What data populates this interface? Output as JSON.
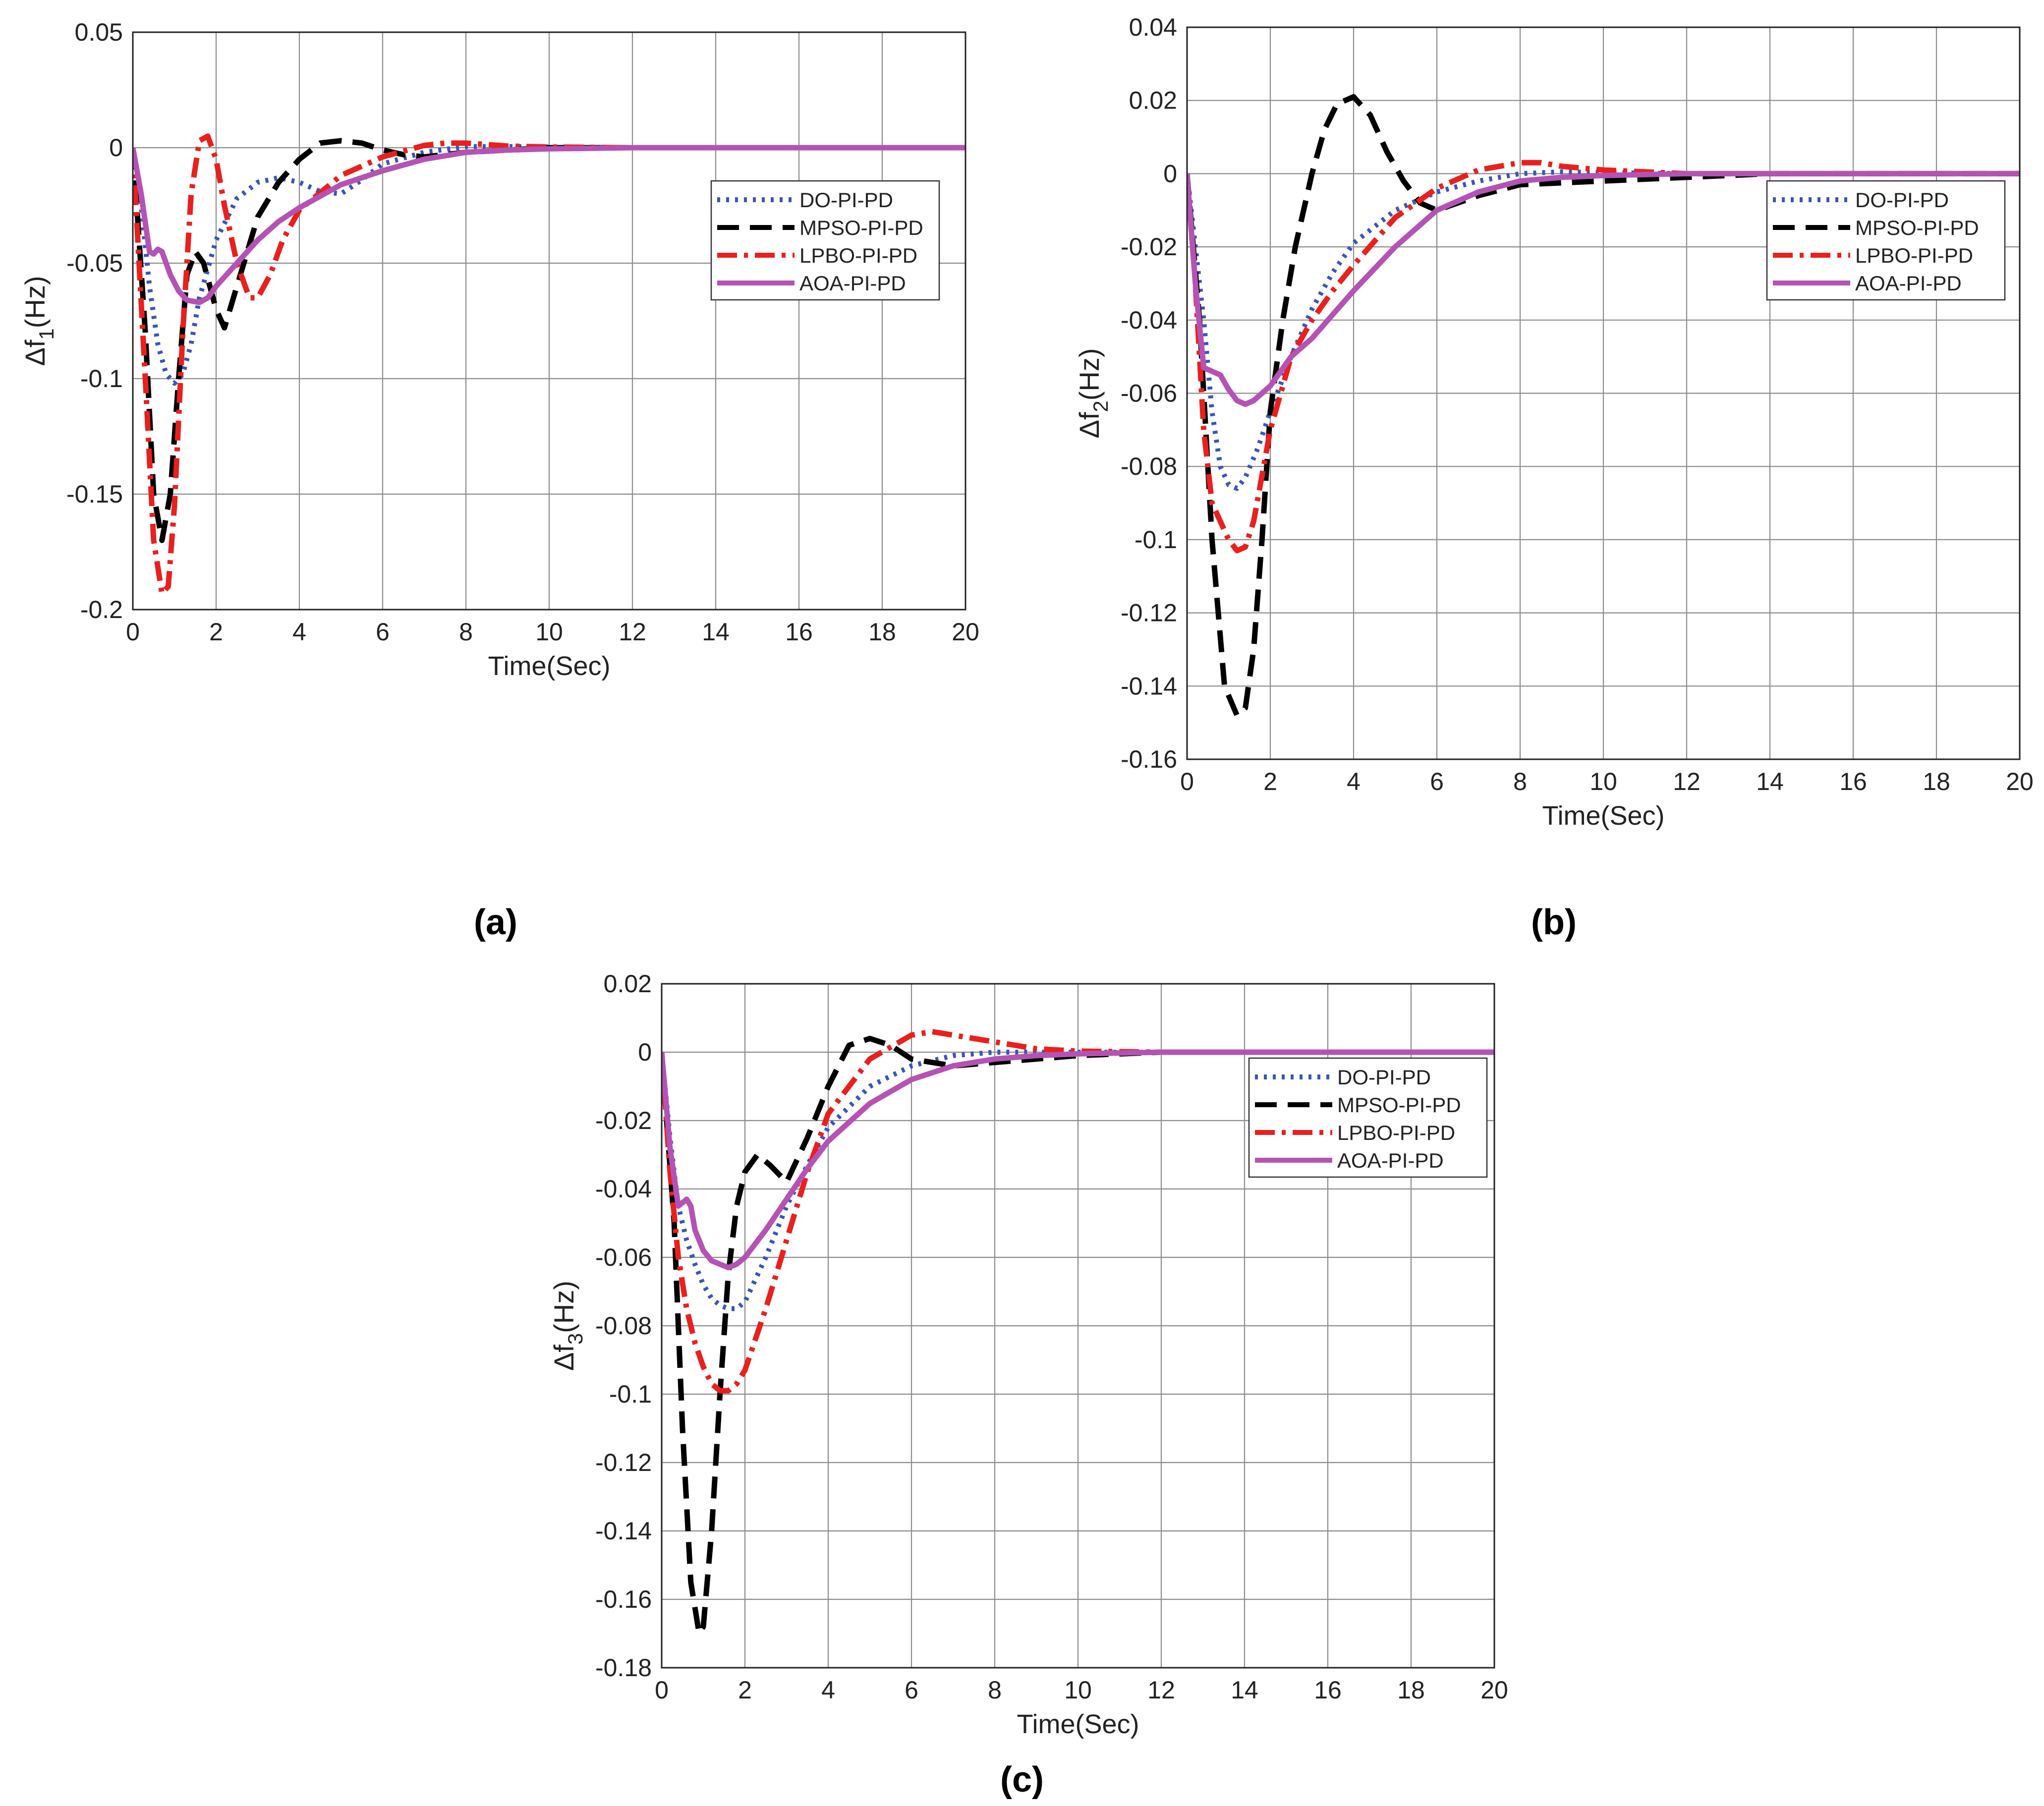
{
  "figure": {
    "captions": [
      "(a)",
      "(b)",
      "(c)"
    ]
  },
  "legend_styles": [
    {
      "name": "DO-PI-PD",
      "color": "#3a55b4",
      "dash": "dotted"
    },
    {
      "name": "MPSO-PI-PD",
      "color": "#000000",
      "dash": "dashed"
    },
    {
      "name": "LPBO-PI-PD",
      "color": "#e8201e",
      "dash": "dashdot"
    },
    {
      "name": "AOA-PI-PD",
      "color": "#b453b4",
      "dash": "solid"
    }
  ],
  "chart_data": [
    {
      "type": "line",
      "panel": "(a)",
      "xlabel": "Time(Sec)",
      "ylabel": "Δf1(Hz)",
      "ylabel_main": "Δf",
      "ylabel_sub": "1",
      "ylabel_unit": "(Hz)",
      "xlim": [
        0,
        20
      ],
      "ylim": [
        -0.2,
        0.05
      ],
      "xticks": [
        0,
        2,
        4,
        6,
        8,
        10,
        12,
        14,
        16,
        18,
        20
      ],
      "yticks": [
        -0.2,
        -0.15,
        -0.1,
        -0.05,
        0,
        0.05
      ],
      "ytick_labels": [
        "-0.2",
        "-0.15",
        "-0.1",
        "-0.05",
        "0",
        "0.05"
      ],
      "grid": true,
      "legend_position": "top-right",
      "series": [
        {
          "name": "DO-PI-PD",
          "x": [
            0,
            0.2,
            0.4,
            0.6,
            0.8,
            1.0,
            1.2,
            1.4,
            1.6,
            2.0,
            2.5,
            3.0,
            3.5,
            4.0,
            4.5,
            5.0,
            5.5,
            6.0,
            7.0,
            8.0,
            9.0,
            10,
            12,
            14,
            16,
            18,
            20
          ],
          "y": [
            0,
            -0.025,
            -0.06,
            -0.085,
            -0.098,
            -0.102,
            -0.098,
            -0.085,
            -0.065,
            -0.04,
            -0.022,
            -0.015,
            -0.013,
            -0.015,
            -0.019,
            -0.02,
            -0.014,
            -0.007,
            -0.002,
            0.0005,
            0.0005,
            0.0003,
            0,
            0,
            0,
            0,
            0
          ]
        },
        {
          "name": "MPSO-PI-PD",
          "x": [
            0,
            0.3,
            0.5,
            0.7,
            0.9,
            1.1,
            1.3,
            1.5,
            1.7,
            2.0,
            2.2,
            2.5,
            3.0,
            3.5,
            4.0,
            4.5,
            5.0,
            5.5,
            6.0,
            6.5,
            7.0,
            8.0,
            9.0,
            10,
            12,
            14,
            16,
            18,
            20
          ],
          "y": [
            0,
            -0.08,
            -0.15,
            -0.17,
            -0.15,
            -0.1,
            -0.055,
            -0.045,
            -0.05,
            -0.07,
            -0.078,
            -0.06,
            -0.03,
            -0.015,
            -0.005,
            0.002,
            0.003,
            0.002,
            -0.001,
            -0.003,
            -0.004,
            -0.002,
            -0.001,
            0,
            0,
            0,
            0,
            0,
            0
          ]
        },
        {
          "name": "LPBO-PI-PD",
          "x": [
            0,
            0.3,
            0.5,
            0.7,
            0.85,
            1.0,
            1.2,
            1.4,
            1.6,
            1.8,
            2.0,
            2.2,
            2.5,
            2.8,
            3.0,
            3.3,
            3.6,
            4.0,
            5.0,
            6.0,
            7.0,
            7.5,
            8.0,
            9.0,
            10,
            12,
            14,
            16,
            18,
            20
          ],
          "y": [
            0,
            -0.1,
            -0.17,
            -0.193,
            -0.19,
            -0.155,
            -0.08,
            -0.02,
            0.003,
            0.005,
            -0.005,
            -0.025,
            -0.05,
            -0.065,
            -0.065,
            -0.055,
            -0.04,
            -0.027,
            -0.012,
            -0.004,
            0.001,
            0.002,
            0.002,
            0.0007,
            0.0003,
            0,
            0,
            0,
            0,
            0
          ]
        },
        {
          "name": "AOA-PI-PD",
          "x": [
            0,
            0.2,
            0.4,
            0.5,
            0.6,
            0.7,
            0.9,
            1.1,
            1.3,
            1.6,
            1.8,
            2.0,
            2.5,
            3.0,
            3.5,
            4.0,
            5.0,
            6.0,
            7.0,
            8.0,
            9.0,
            10,
            12,
            14,
            16,
            18,
            20
          ],
          "y": [
            0,
            -0.02,
            -0.045,
            -0.046,
            -0.044,
            -0.045,
            -0.055,
            -0.062,
            -0.066,
            -0.067,
            -0.065,
            -0.06,
            -0.05,
            -0.04,
            -0.032,
            -0.026,
            -0.016,
            -0.01,
            -0.005,
            -0.002,
            -0.001,
            -0.0005,
            0,
            0,
            0,
            0,
            0
          ]
        }
      ]
    },
    {
      "type": "line",
      "panel": "(b)",
      "xlabel": "Time(Sec)",
      "ylabel": "Δf2(Hz)",
      "ylabel_main": "Δf",
      "ylabel_sub": "2",
      "ylabel_unit": "(Hz)",
      "xlim": [
        0,
        20
      ],
      "ylim": [
        -0.16,
        0.04
      ],
      "xticks": [
        0,
        2,
        4,
        6,
        8,
        10,
        12,
        14,
        16,
        18,
        20
      ],
      "yticks": [
        -0.16,
        -0.14,
        -0.12,
        -0.1,
        -0.08,
        -0.06,
        -0.04,
        -0.02,
        0,
        0.02,
        0.04
      ],
      "ytick_labels": [
        "-0.16",
        "-0.14",
        "-0.12",
        "-0.1",
        "-0.08",
        "-0.06",
        "-0.04",
        "-0.02",
        "0",
        "0.02",
        "0.04"
      ],
      "grid": true,
      "legend_position": "top-right",
      "series": [
        {
          "name": "DO-PI-PD",
          "x": [
            0,
            0.2,
            0.4,
            0.6,
            0.8,
            1.0,
            1.2,
            1.4,
            1.7,
            2.0,
            2.5,
            3.0,
            3.5,
            4.0,
            5.0,
            6.0,
            7.0,
            8.0,
            9.0,
            10,
            12,
            14,
            16,
            18,
            20
          ],
          "y": [
            0,
            -0.02,
            -0.04,
            -0.065,
            -0.08,
            -0.085,
            -0.086,
            -0.083,
            -0.075,
            -0.065,
            -0.05,
            -0.037,
            -0.027,
            -0.019,
            -0.01,
            -0.005,
            -0.002,
            0,
            0.0005,
            0.0003,
            0,
            0,
            0,
            0,
            0
          ]
        },
        {
          "name": "MPSO-PI-PD",
          "x": [
            0,
            0.3,
            0.6,
            0.9,
            1.2,
            1.4,
            1.6,
            1.8,
            2.0,
            2.3,
            2.6,
            3.0,
            3.3,
            3.6,
            4.0,
            4.4,
            4.8,
            5.2,
            5.6,
            6.0,
            7.0,
            8.0,
            10,
            12,
            14,
            16,
            18,
            20
          ],
          "y": [
            0,
            -0.04,
            -0.1,
            -0.14,
            -0.148,
            -0.146,
            -0.13,
            -0.1,
            -0.065,
            -0.04,
            -0.02,
            0.0,
            0.012,
            0.019,
            0.021,
            0.016,
            0.006,
            -0.002,
            -0.008,
            -0.01,
            -0.006,
            -0.003,
            -0.002,
            -0.001,
            0,
            0,
            0,
            0
          ]
        },
        {
          "name": "LPBO-PI-PD",
          "x": [
            0,
            0.2,
            0.4,
            0.6,
            0.8,
            1.0,
            1.2,
            1.4,
            1.6,
            2.0,
            2.5,
            3.0,
            3.5,
            4.0,
            5.0,
            6.0,
            7.0,
            8.0,
            8.5,
            9.0,
            10,
            12,
            14,
            16,
            18,
            20
          ],
          "y": [
            0,
            -0.03,
            -0.07,
            -0.09,
            -0.095,
            -0.1,
            -0.103,
            -0.102,
            -0.095,
            -0.07,
            -0.05,
            -0.04,
            -0.032,
            -0.025,
            -0.012,
            -0.004,
            0.001,
            0.003,
            0.003,
            0.002,
            0.001,
            0,
            0,
            0,
            0,
            0
          ]
        },
        {
          "name": "AOA-PI-PD",
          "x": [
            0,
            0.2,
            0.4,
            0.6,
            0.8,
            1.0,
            1.2,
            1.4,
            1.6,
            2.0,
            2.5,
            3.0,
            4.0,
            5.0,
            6.0,
            7.0,
            8.0,
            9.0,
            10,
            12,
            14,
            16,
            18,
            20
          ],
          "y": [
            0,
            -0.03,
            -0.053,
            -0.054,
            -0.055,
            -0.059,
            -0.062,
            -0.063,
            -0.062,
            -0.058,
            -0.05,
            -0.045,
            -0.032,
            -0.02,
            -0.01,
            -0.005,
            -0.002,
            -0.001,
            -0.0005,
            0,
            0,
            0,
            0,
            0
          ]
        }
      ]
    },
    {
      "type": "line",
      "panel": "(c)",
      "xlabel": "Time(Sec)",
      "ylabel": "Δf3(Hz)",
      "ylabel_main": "Δf",
      "ylabel_sub": "3",
      "ylabel_unit": "(Hz)",
      "xlim": [
        0,
        20
      ],
      "ylim": [
        -0.18,
        0.02
      ],
      "xticks": [
        0,
        2,
        4,
        6,
        8,
        10,
        12,
        14,
        16,
        18,
        20
      ],
      "yticks": [
        -0.18,
        -0.16,
        -0.14,
        -0.12,
        -0.1,
        -0.08,
        -0.06,
        -0.04,
        -0.02,
        0,
        0.02
      ],
      "ytick_labels": [
        "-0.18",
        "-0.16",
        "-0.14",
        "-0.12",
        "-0.1",
        "-0.08",
        "-0.06",
        "-0.04",
        "-0.02",
        "0",
        "0.02"
      ],
      "grid": true,
      "legend_position": "top-right",
      "series": [
        {
          "name": "DO-PI-PD",
          "x": [
            0,
            0.2,
            0.4,
            0.6,
            0.8,
            1.0,
            1.2,
            1.4,
            1.6,
            1.8,
            2.0,
            2.5,
            3.0,
            3.5,
            4.0,
            5.0,
            6.0,
            7.0,
            8.0,
            9.0,
            10,
            12,
            14,
            16,
            18,
            20
          ],
          "y": [
            0,
            -0.025,
            -0.045,
            -0.055,
            -0.062,
            -0.068,
            -0.072,
            -0.074,
            -0.075,
            -0.075,
            -0.073,
            -0.06,
            -0.045,
            -0.033,
            -0.022,
            -0.01,
            -0.004,
            -0.001,
            0,
            0,
            0,
            0,
            0,
            0,
            0,
            0
          ]
        },
        {
          "name": "MPSO-PI-PD",
          "x": [
            0,
            0.3,
            0.5,
            0.7,
            0.9,
            1.0,
            1.2,
            1.4,
            1.6,
            1.8,
            2.0,
            2.3,
            2.6,
            3.0,
            3.5,
            4.0,
            4.5,
            5.0,
            5.5,
            6.0,
            7.0,
            8.0,
            10,
            12,
            14,
            16,
            18,
            20
          ],
          "y": [
            0,
            -0.05,
            -0.11,
            -0.155,
            -0.17,
            -0.168,
            -0.14,
            -0.1,
            -0.065,
            -0.045,
            -0.035,
            -0.03,
            -0.033,
            -0.038,
            -0.025,
            -0.01,
            0.002,
            0.004,
            0.002,
            -0.002,
            -0.004,
            -0.003,
            -0.001,
            0,
            0,
            0,
            0,
            0
          ]
        },
        {
          "name": "LPBO-PI-PD",
          "x": [
            0,
            0.2,
            0.4,
            0.6,
            0.8,
            1.0,
            1.2,
            1.4,
            1.6,
            1.8,
            2.0,
            2.5,
            3.0,
            3.5,
            4.0,
            5.0,
            6.0,
            6.5,
            7.0,
            8.0,
            9.0,
            10,
            12,
            14,
            16,
            18,
            20
          ],
          "y": [
            0,
            -0.035,
            -0.06,
            -0.075,
            -0.085,
            -0.092,
            -0.097,
            -0.099,
            -0.099,
            -0.097,
            -0.093,
            -0.075,
            -0.055,
            -0.035,
            -0.018,
            -0.002,
            0.005,
            0.006,
            0.005,
            0.003,
            0.001,
            0.0003,
            0,
            0,
            0,
            0,
            0
          ]
        },
        {
          "name": "AOA-PI-PD",
          "x": [
            0,
            0.2,
            0.4,
            0.5,
            0.6,
            0.7,
            0.8,
            1.0,
            1.2,
            1.4,
            1.6,
            1.8,
            2.0,
            2.5,
            3.0,
            3.5,
            4.0,
            5.0,
            6.0,
            7.0,
            8.0,
            9.0,
            10,
            12,
            14,
            16,
            18,
            20
          ],
          "y": [
            0,
            -0.028,
            -0.045,
            -0.044,
            -0.043,
            -0.045,
            -0.052,
            -0.058,
            -0.061,
            -0.062,
            -0.063,
            -0.062,
            -0.06,
            -0.052,
            -0.043,
            -0.034,
            -0.026,
            -0.015,
            -0.008,
            -0.004,
            -0.002,
            -0.001,
            -0.0005,
            0,
            0,
            0,
            0,
            0
          ]
        }
      ]
    }
  ]
}
